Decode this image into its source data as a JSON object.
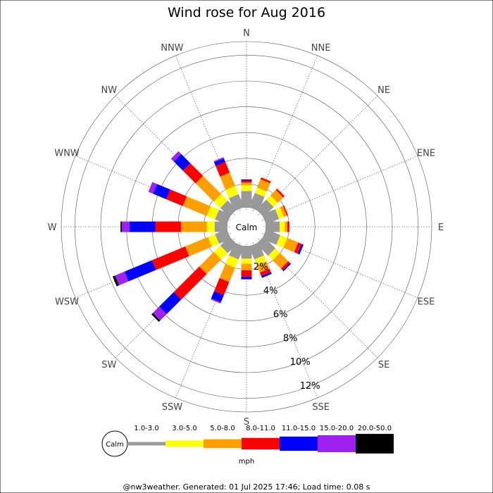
{
  "chart_data": {
    "type": "wind-rose",
    "title": "Wind rose for Aug 2016",
    "directions": [
      "N",
      "NNE",
      "NE",
      "ENE",
      "E",
      "ESE",
      "SE",
      "SSE",
      "S",
      "SSW",
      "SW",
      "WSW",
      "W",
      "WNW",
      "NW",
      "NNW"
    ],
    "ring_labels": [
      "2%",
      "4%",
      "6%",
      "8%",
      "10%",
      "12%"
    ],
    "ring_values": [
      2,
      4,
      6,
      8,
      10,
      12
    ],
    "max_percent": 12,
    "calm_label": "Calm",
    "speed_bins": [
      {
        "label": "1.0-3.0",
        "color": "#999999"
      },
      {
        "label": "3.0-5.0",
        "color": "#ffff00"
      },
      {
        "label": "5.0-8.0",
        "color": "#ffa000"
      },
      {
        "label": "8.0-11.0",
        "color": "#ff0000"
      },
      {
        "label": "11.0-15.0",
        "color": "#0000ff"
      },
      {
        "label": "15.0-20.0",
        "color": "#a020f0"
      },
      {
        "label": "20.0-50.0",
        "color": "#000000"
      }
    ],
    "units_label": "mph",
    "series": [
      {
        "direction": "N",
        "values": [
          1.3,
          0.45,
          0.2,
          0.15,
          0.1,
          0,
          0
        ]
      },
      {
        "direction": "NNE",
        "values": [
          1.2,
          0.45,
          0.7,
          0.15,
          0,
          0,
          0
        ]
      },
      {
        "direction": "NE",
        "values": [
          1.1,
          0.45,
          0.6,
          0.15,
          0,
          0,
          0
        ]
      },
      {
        "direction": "ENE",
        "values": [
          1.1,
          0.4,
          0.25,
          0.1,
          0,
          0,
          0
        ]
      },
      {
        "direction": "E",
        "values": [
          1.1,
          0.4,
          0.2,
          0.15,
          0,
          0,
          0
        ]
      },
      {
        "direction": "ESE",
        "values": [
          1.2,
          0.6,
          0.9,
          0.3,
          0.15,
          0,
          0
        ]
      },
      {
        "direction": "SE",
        "values": [
          1.3,
          0.5,
          0.9,
          0.2,
          0.1,
          0,
          0
        ]
      },
      {
        "direction": "SSE",
        "values": [
          1.1,
          0.5,
          0.6,
          0.3,
          0.15,
          0,
          0
        ]
      },
      {
        "direction": "S",
        "values": [
          1.0,
          0.4,
          0.5,
          0.5,
          0.2,
          0,
          0
        ]
      },
      {
        "direction": "SSW",
        "values": [
          1.1,
          0.7,
          1.2,
          1.1,
          0.6,
          0.1,
          0
        ]
      },
      {
        "direction": "SW",
        "values": [
          1.0,
          0.7,
          1.6,
          2.8,
          1.6,
          0.7,
          0.15
        ]
      },
      {
        "direction": "WSW",
        "values": [
          1.0,
          0.6,
          1.9,
          2.8,
          2.3,
          0.8,
          0.2
        ]
      },
      {
        "direction": "W",
        "values": [
          1.0,
          0.6,
          2.0,
          2.0,
          2.0,
          0.6,
          0.1
        ]
      },
      {
        "direction": "WNW",
        "values": [
          1.0,
          0.7,
          2.0,
          1.4,
          1.1,
          0.4,
          0
        ]
      },
      {
        "direction": "NW",
        "values": [
          1.0,
          0.7,
          2.0,
          1.4,
          1.0,
          0.3,
          0
        ]
      },
      {
        "direction": "NNW",
        "values": [
          1.1,
          0.7,
          1.1,
          0.9,
          0.3,
          0.1,
          0
        ]
      }
    ],
    "grid": true,
    "legend_position": "bottom"
  },
  "footer": "@nw3weather. Generated: 01 Jul 2025 17:46; Load time: 0.08 s"
}
